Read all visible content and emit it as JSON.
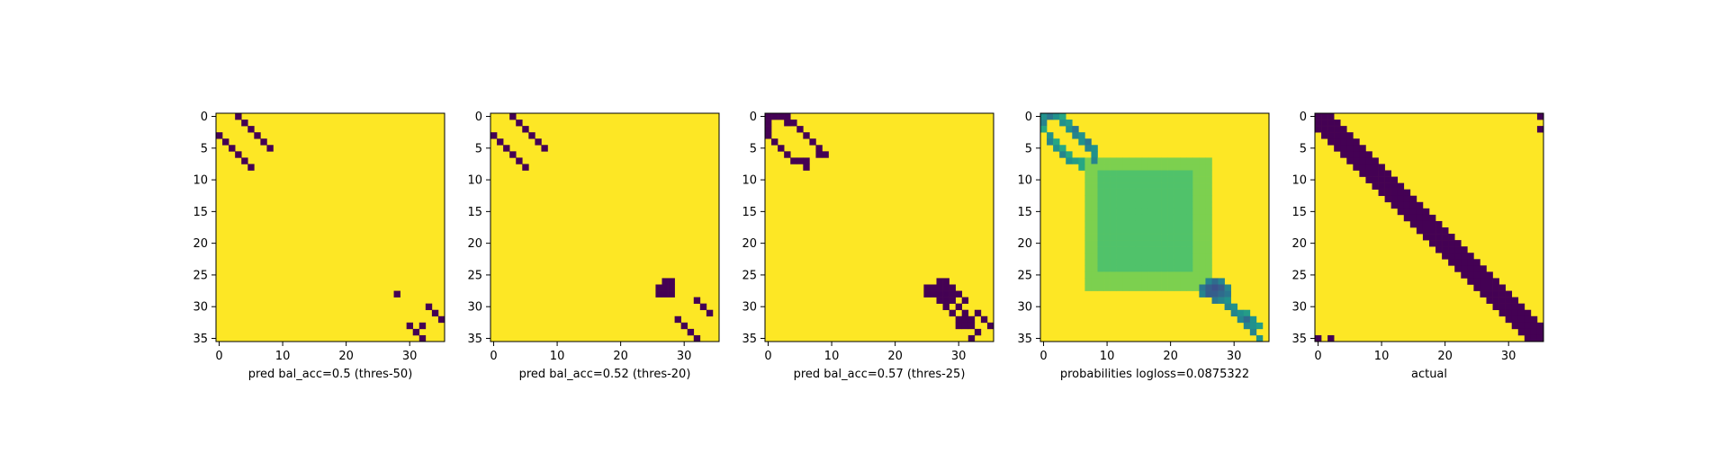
{
  "colors": {
    "background": "#ffffff",
    "low": "#440154",
    "high": "#fde725",
    "prob_mid": "#b5de2b",
    "prob_light": "#d0e11c",
    "prob_teal": "#21918c",
    "prob_green": "#5ec962",
    "axis": "#000000"
  },
  "chart_data": [
    {
      "type": "heatmap",
      "title": "",
      "xlabel": "pred bal_acc=0.5 (thres-50)",
      "ylabel": "",
      "size": 36,
      "xlim": [
        -0.5,
        35.5
      ],
      "ylim": [
        35.5,
        -0.5
      ],
      "xticks": [
        0,
        10,
        20,
        30
      ],
      "yticks": [
        0,
        5,
        10,
        15,
        20,
        25,
        30,
        35
      ],
      "grid": false,
      "colormap": "viridis",
      "values_description_of_low_cells": "binary matrix; listed cells are low (dark), all others high (yellow)",
      "low_cells": [
        [
          0,
          3
        ],
        [
          1,
          4
        ],
        [
          2,
          5
        ],
        [
          3,
          6
        ],
        [
          4,
          7
        ],
        [
          5,
          8
        ],
        [
          3,
          0
        ],
        [
          4,
          1
        ],
        [
          5,
          2
        ],
        [
          6,
          3
        ],
        [
          7,
          4
        ],
        [
          8,
          5
        ],
        [
          28,
          28
        ],
        [
          30,
          33
        ],
        [
          31,
          34
        ],
        [
          32,
          35
        ],
        [
          33,
          30
        ],
        [
          34,
          31
        ],
        [
          35,
          32
        ],
        [
          33,
          32
        ]
      ]
    },
    {
      "type": "heatmap",
      "title": "",
      "xlabel": "pred bal_acc=0.52 (thres-20)",
      "ylabel": "",
      "size": 36,
      "xlim": [
        -0.5,
        35.5
      ],
      "ylim": [
        35.5,
        -0.5
      ],
      "xticks": [
        0,
        10,
        20,
        30
      ],
      "yticks": [
        0,
        5,
        10,
        15,
        20,
        25,
        30,
        35
      ],
      "grid": false,
      "colormap": "viridis",
      "low_cells": [
        [
          0,
          3
        ],
        [
          1,
          4
        ],
        [
          2,
          5
        ],
        [
          3,
          6
        ],
        [
          4,
          7
        ],
        [
          5,
          8
        ],
        [
          3,
          0
        ],
        [
          4,
          1
        ],
        [
          5,
          2
        ],
        [
          6,
          3
        ],
        [
          7,
          4
        ],
        [
          8,
          5
        ],
        [
          26,
          27
        ],
        [
          26,
          28
        ],
        [
          27,
          26
        ],
        [
          27,
          27
        ],
        [
          27,
          28
        ],
        [
          28,
          26
        ],
        [
          28,
          27
        ],
        [
          28,
          28
        ],
        [
          29,
          32
        ],
        [
          30,
          33
        ],
        [
          31,
          34
        ],
        [
          32,
          29
        ],
        [
          33,
          30
        ],
        [
          34,
          31
        ],
        [
          35,
          32
        ]
      ]
    },
    {
      "type": "heatmap",
      "title": "",
      "xlabel": "pred bal_acc=0.57 (thres-25)",
      "ylabel": "",
      "size": 36,
      "xlim": [
        -0.5,
        35.5
      ],
      "ylim": [
        35.5,
        -0.5
      ],
      "xticks": [
        0,
        10,
        20,
        30
      ],
      "yticks": [
        0,
        5,
        10,
        15,
        20,
        25,
        30,
        35
      ],
      "grid": false,
      "colormap": "viridis",
      "low_cells": [
        [
          0,
          0
        ],
        [
          0,
          1
        ],
        [
          0,
          2
        ],
        [
          0,
          3
        ],
        [
          1,
          0
        ],
        [
          1,
          3
        ],
        [
          1,
          4
        ],
        [
          2,
          0
        ],
        [
          2,
          5
        ],
        [
          3,
          0
        ],
        [
          3,
          6
        ],
        [
          4,
          1
        ],
        [
          4,
          7
        ],
        [
          5,
          2
        ],
        [
          5,
          8
        ],
        [
          6,
          3
        ],
        [
          6,
          8
        ],
        [
          6,
          9
        ],
        [
          7,
          4
        ],
        [
          7,
          5
        ],
        [
          7,
          6
        ],
        [
          8,
          6
        ],
        [
          26,
          27
        ],
        [
          26,
          28
        ],
        [
          27,
          25
        ],
        [
          27,
          26
        ],
        [
          27,
          27
        ],
        [
          27,
          28
        ],
        [
          27,
          29
        ],
        [
          28,
          25
        ],
        [
          28,
          26
        ],
        [
          28,
          27
        ],
        [
          28,
          28
        ],
        [
          28,
          29
        ],
        [
          28,
          30
        ],
        [
          29,
          27
        ],
        [
          29,
          28
        ],
        [
          29,
          29
        ],
        [
          29,
          31
        ],
        [
          30,
          28
        ],
        [
          30,
          30
        ],
        [
          31,
          29
        ],
        [
          31,
          31
        ],
        [
          31,
          33
        ],
        [
          32,
          30
        ],
        [
          32,
          31
        ],
        [
          32,
          32
        ],
        [
          32,
          34
        ],
        [
          33,
          30
        ],
        [
          33,
          31
        ],
        [
          33,
          32
        ],
        [
          33,
          35
        ],
        [
          34,
          33
        ],
        [
          35,
          32
        ]
      ]
    },
    {
      "type": "heatmap",
      "title": "",
      "xlabel": "probabilities logloss=0.0875322",
      "ylabel": "",
      "size": 36,
      "xlim": [
        -0.5,
        35.5
      ],
      "ylim": [
        35.5,
        -0.5
      ],
      "xticks": [
        0,
        10,
        20,
        30
      ],
      "yticks": [
        0,
        5,
        10,
        15,
        20,
        25,
        30,
        35
      ],
      "grid": false,
      "colormap": "viridis",
      "background_value": 1.0,
      "regions": [
        {
          "rows": [
            7,
            27
          ],
          "cols": [
            7,
            26
          ],
          "value": 0.8
        },
        {
          "rows": [
            9,
            24
          ],
          "cols": [
            9,
            23
          ],
          "value": 0.72
        }
      ],
      "hot_cells": [
        [
          0,
          0,
          0.5
        ],
        [
          0,
          1,
          0.4
        ],
        [
          0,
          2,
          0.5
        ],
        [
          0,
          3,
          0.6
        ],
        [
          1,
          0,
          0.45
        ],
        [
          1,
          3,
          0.5
        ],
        [
          1,
          4,
          0.55
        ],
        [
          2,
          0,
          0.6
        ],
        [
          2,
          4,
          0.5
        ],
        [
          2,
          5,
          0.4
        ],
        [
          3,
          1,
          0.5
        ],
        [
          3,
          5,
          0.45
        ],
        [
          3,
          6,
          0.5
        ],
        [
          4,
          1,
          0.45
        ],
        [
          4,
          2,
          0.6
        ],
        [
          4,
          6,
          0.5
        ],
        [
          4,
          7,
          0.4
        ],
        [
          5,
          2,
          0.5
        ],
        [
          5,
          3,
          0.6
        ],
        [
          5,
          7,
          0.45
        ],
        [
          5,
          8,
          0.5
        ],
        [
          6,
          3,
          0.45
        ],
        [
          6,
          4,
          0.6
        ],
        [
          6,
          8,
          0.5
        ],
        [
          7,
          4,
          0.5
        ],
        [
          7,
          5,
          0.55
        ],
        [
          7,
          6,
          0.6
        ],
        [
          7,
          8,
          0.45
        ],
        [
          8,
          6,
          0.6
        ],
        [
          26,
          26,
          0.45
        ],
        [
          26,
          27,
          0.35
        ],
        [
          26,
          28,
          0.45
        ],
        [
          27,
          25,
          0.4
        ],
        [
          27,
          26,
          0.3
        ],
        [
          27,
          27,
          0.25
        ],
        [
          27,
          28,
          0.3
        ],
        [
          27,
          29,
          0.45
        ],
        [
          28,
          25,
          0.45
        ],
        [
          28,
          26,
          0.3
        ],
        [
          28,
          27,
          0.3
        ],
        [
          28,
          28,
          0.35
        ],
        [
          28,
          29,
          0.4
        ],
        [
          29,
          27,
          0.4
        ],
        [
          29,
          28,
          0.45
        ],
        [
          29,
          29,
          0.5
        ],
        [
          30,
          29,
          0.45
        ],
        [
          30,
          30,
          0.5
        ],
        [
          31,
          30,
          0.45
        ],
        [
          31,
          31,
          0.5
        ],
        [
          31,
          32,
          0.55
        ],
        [
          32,
          31,
          0.45
        ],
        [
          32,
          32,
          0.35
        ],
        [
          32,
          33,
          0.5
        ],
        [
          33,
          32,
          0.45
        ],
        [
          33,
          33,
          0.5
        ],
        [
          33,
          34,
          0.55
        ],
        [
          34,
          33,
          0.45
        ],
        [
          35,
          34,
          0.5
        ]
      ]
    },
    {
      "type": "heatmap",
      "title": "",
      "xlabel": "actual",
      "ylabel": "",
      "size": 36,
      "xlim": [
        -0.5,
        35.5
      ],
      "ylim": [
        35.5,
        -0.5
      ],
      "xticks": [
        0,
        10,
        20,
        30
      ],
      "yticks": [
        0,
        5,
        10,
        15,
        20,
        25,
        30,
        35
      ],
      "grid": false,
      "colormap": "viridis",
      "band_halfwidth": 2,
      "extra_low_cells": [
        [
          0,
          35
        ],
        [
          2,
          35
        ],
        [
          35,
          0
        ],
        [
          35,
          2
        ]
      ]
    }
  ]
}
